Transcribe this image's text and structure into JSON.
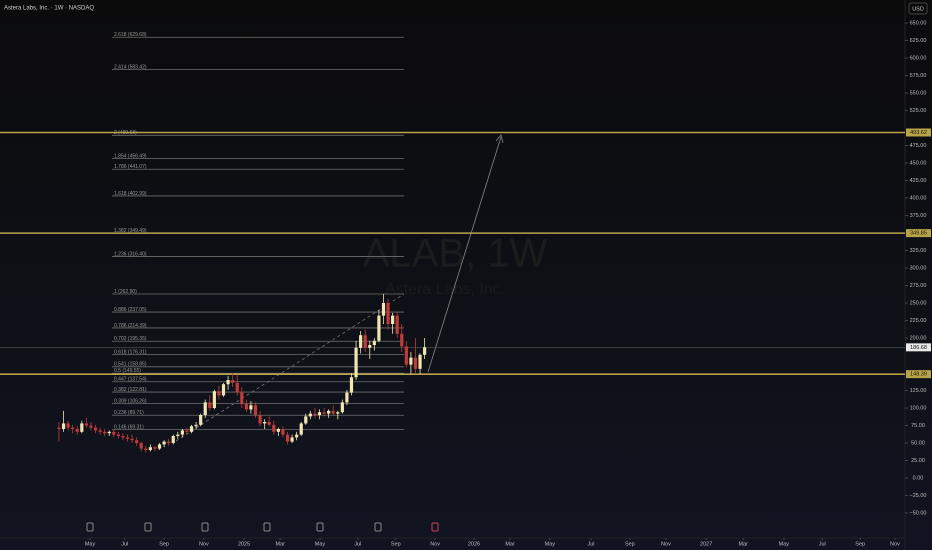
{
  "chart_data": {
    "type": "candlestick",
    "title": "Astera Labs, Inc. · 1W · NASDAQ",
    "watermark": "ALAB, 1W",
    "watermark_subtitle": "Astera Labs, Inc.",
    "currency": "USD",
    "up_color": "#f1e6b2",
    "down_color": "#c23b3b",
    "level_color": "#b8a447",
    "x": [
      0,
      1,
      2,
      3,
      4,
      5,
      6,
      7,
      8,
      9,
      10,
      11,
      12,
      13,
      14,
      15,
      16,
      17,
      18,
      19,
      20,
      21,
      22,
      23,
      24,
      25,
      26,
      27,
      28,
      29,
      30,
      31,
      32,
      33,
      34,
      35,
      36,
      37,
      38,
      39,
      40,
      41,
      42,
      43,
      44,
      45,
      46,
      47,
      48,
      49,
      50,
      51,
      52,
      53,
      54,
      55,
      56,
      57,
      58,
      59,
      60,
      61,
      62,
      63,
      64,
      65,
      66,
      67,
      68,
      69,
      70,
      71,
      72,
      73,
      74,
      75,
      76,
      77,
      78,
      79,
      80
    ],
    "open": [
      72,
      70,
      78,
      72,
      70,
      66,
      78,
      75,
      72,
      68,
      66,
      64,
      66,
      62,
      60,
      58,
      56,
      54,
      50,
      42,
      40,
      44,
      42,
      48,
      52,
      50,
      60,
      62,
      68,
      66,
      74,
      76,
      90,
      108,
      100,
      124,
      118,
      134,
      140,
      136,
      122,
      106,
      98,
      104,
      90,
      78,
      80,
      76,
      66,
      70,
      62,
      52,
      58,
      62,
      78,
      88,
      92,
      90,
      94,
      92,
      96,
      92,
      94,
      108,
      122,
      144,
      186,
      204,
      186,
      190,
      196,
      232,
      250,
      220,
      232,
      206,
      188,
      162,
      172,
      156,
      176
    ],
    "high": [
      80,
      96,
      82,
      76,
      74,
      82,
      86,
      80,
      76,
      72,
      70,
      68,
      70,
      66,
      64,
      62,
      62,
      58,
      52,
      46,
      48,
      46,
      50,
      54,
      56,
      62,
      66,
      70,
      72,
      76,
      80,
      92,
      112,
      118,
      126,
      132,
      136,
      146,
      150,
      148,
      130,
      112,
      110,
      108,
      96,
      84,
      88,
      82,
      72,
      74,
      66,
      62,
      66,
      80,
      92,
      96,
      100,
      98,
      100,
      98,
      104,
      96,
      112,
      126,
      150,
      196,
      210,
      212,
      196,
      200,
      240,
      262.9,
      256,
      236,
      238,
      220,
      196,
      180,
      200,
      178,
      200
    ],
    "low": [
      52,
      66,
      68,
      64,
      62,
      64,
      72,
      68,
      64,
      62,
      60,
      60,
      58,
      56,
      54,
      52,
      50,
      46,
      38,
      36,
      38,
      38,
      40,
      44,
      46,
      48,
      56,
      58,
      62,
      64,
      70,
      74,
      86,
      96,
      98,
      112,
      116,
      126,
      130,
      118,
      100,
      94,
      92,
      86,
      74,
      70,
      74,
      62,
      60,
      58,
      48,
      50,
      54,
      60,
      76,
      84,
      86,
      84,
      88,
      86,
      90,
      84,
      92,
      104,
      118,
      140,
      178,
      180,
      170,
      182,
      194,
      220,
      212,
      206,
      200,
      180,
      158,
      148,
      150,
      148.39,
      170
    ],
    "close": [
      70,
      78,
      72,
      70,
      66,
      78,
      75,
      72,
      68,
      66,
      64,
      66,
      62,
      60,
      58,
      56,
      54,
      50,
      42,
      40,
      44,
      42,
      48,
      52,
      50,
      60,
      62,
      68,
      66,
      74,
      76,
      90,
      108,
      100,
      124,
      118,
      134,
      140,
      136,
      122,
      106,
      98,
      104,
      90,
      78,
      80,
      76,
      66,
      70,
      62,
      52,
      58,
      62,
      78,
      88,
      92,
      90,
      94,
      92,
      96,
      92,
      94,
      108,
      122,
      144,
      186,
      204,
      186,
      190,
      196,
      232,
      250,
      220,
      232,
      206,
      188,
      162,
      172,
      156,
      176,
      186.68
    ],
    "xlim": [
      -12.9,
      185.1
    ],
    "ylim": [
      -85.7,
      682.9
    ],
    "xticks": [
      {
        "value": 6.8,
        "label": "May"
      },
      {
        "value": 14.4,
        "label": "Jul"
      },
      {
        "value": 23,
        "label": "Sep"
      },
      {
        "value": 31.7,
        "label": "Nov"
      },
      {
        "value": 40.5,
        "label": "2025"
      },
      {
        "value": 48.4,
        "label": "Mar"
      },
      {
        "value": 57.1,
        "label": "May"
      },
      {
        "value": 65.4,
        "label": "Jul"
      },
      {
        "value": 73.7,
        "label": "Sep"
      },
      {
        "value": 82.3,
        "label": "Nov"
      },
      {
        "value": 90.8,
        "label": "2026"
      },
      {
        "value": 98.7,
        "label": "Mar"
      },
      {
        "value": 107.4,
        "label": "May"
      },
      {
        "value": 116.4,
        "label": "Jul"
      },
      {
        "value": 124.9,
        "label": "Sep"
      },
      {
        "value": 132.8,
        "label": "Nov"
      },
      {
        "value": 141.6,
        "label": "2027"
      },
      {
        "value": 149.7,
        "label": "Mar"
      },
      {
        "value": 158.6,
        "label": "May"
      },
      {
        "value": 167,
        "label": "Jul"
      },
      {
        "value": 175.3,
        "label": "Sep"
      },
      {
        "value": 182.9,
        "label": "Nov"
      }
    ],
    "yticks": [
      {
        "value": 650,
        "label": "650.00"
      },
      {
        "value": 625,
        "label": "625.00"
      },
      {
        "value": 600,
        "label": "600.00"
      },
      {
        "value": 575,
        "label": "575.00"
      },
      {
        "value": 550,
        "label": "550.00"
      },
      {
        "value": 525,
        "label": "525.00"
      },
      {
        "value": 475,
        "label": "475.00"
      },
      {
        "value": 450,
        "label": "450.00"
      },
      {
        "value": 425,
        "label": "425.00"
      },
      {
        "value": 400,
        "label": "400.00"
      },
      {
        "value": 375,
        "label": "375.00"
      },
      {
        "value": 325,
        "label": "325.00"
      },
      {
        "value": 300,
        "label": "300.00"
      },
      {
        "value": 275,
        "label": "275.00"
      },
      {
        "value": 250,
        "label": "250.00"
      },
      {
        "value": 225,
        "label": "225.00"
      },
      {
        "value": 200,
        "label": "200.00"
      },
      {
        "value": 125,
        "label": "125.00"
      },
      {
        "value": 100,
        "label": "100.00"
      },
      {
        "value": 75,
        "label": "75.00"
      },
      {
        "value": 50,
        "label": "50.00"
      },
      {
        "value": 25,
        "label": "25.00"
      },
      {
        "value": 0,
        "label": "0.00"
      },
      {
        "value": -25,
        "label": "−25.00"
      },
      {
        "value": -50,
        "label": "−50.00"
      }
    ],
    "fib_levels": [
      {
        "value": 629.68,
        "label": "2.618 (629.68)"
      },
      {
        "value": 583.42,
        "label": "2.414 (583.42)"
      },
      {
        "value": 489.58,
        "label": "2 (489.58)"
      },
      {
        "value": 456.49,
        "label": "1.854 (456.49)"
      },
      {
        "value": 441.07,
        "label": "1.786 (441.07)"
      },
      {
        "value": 402.99,
        "label": "1.618 (402.99)"
      },
      {
        "value": 349.49,
        "label": "1.382 (349.49)"
      },
      {
        "value": 316.4,
        "label": "1.236 (316.40)"
      },
      {
        "value": 262.9,
        "label": "1 (262.90)"
      },
      {
        "value": 237.05,
        "label": "0.886 (237.05)"
      },
      {
        "value": 214.39,
        "label": "0.786 (214.39)"
      },
      {
        "value": 195.35,
        "label": "0.702 (195.35)"
      },
      {
        "value": 176.31,
        "label": "0.618 (176.31)"
      },
      {
        "value": 158.85,
        "label": "0.541 (158.85)"
      },
      {
        "value": 149.55,
        "label": "0.5 (149.55)"
      },
      {
        "value": 137.54,
        "label": "0.447 (137.54)"
      },
      {
        "value": 122.81,
        "label": "0.382 (122.81)"
      },
      {
        "value": 106.26,
        "label": "0.309 (106.26)"
      },
      {
        "value": 89.71,
        "label": "0.236 (89.71)"
      },
      {
        "value": 69.31,
        "label": "0.146 (69.31)"
      }
    ],
    "price_lines": [
      493.62,
      349.85,
      148.39
    ]
  }
}
